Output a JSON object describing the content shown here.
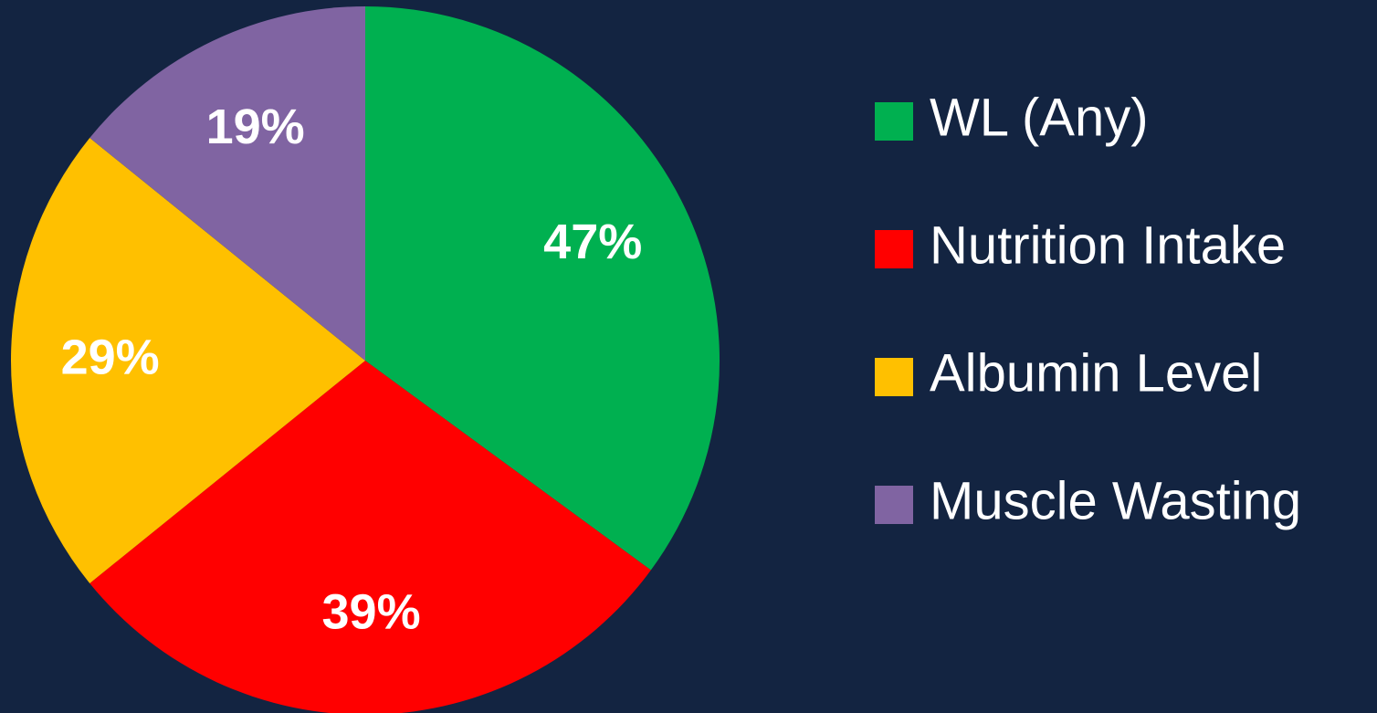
{
  "chart_data": {
    "type": "pie",
    "categories": [
      "WL (Any)",
      "Nutrition Intake",
      "Albumin Level",
      "Muscle Wasting"
    ],
    "values": [
      47,
      39,
      29,
      19
    ],
    "value_labels": [
      "47%",
      "39%",
      "29%",
      "19%"
    ],
    "colors": [
      "#00b050",
      "#ff0000",
      "#ffc000",
      "#8064a2"
    ],
    "legend": "right"
  }
}
